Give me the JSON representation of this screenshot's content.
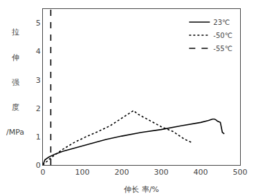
{
  "chart_data": {
    "type": "line",
    "xlabel": "伸长 率/%",
    "ylabel": [
      "拉",
      "伸",
      "强",
      "度",
      "/MPa"
    ],
    "xlim": [
      0,
      500
    ],
    "ylim": [
      0,
      5.5
    ],
    "xticks": [
      0,
      100,
      200,
      300,
      400,
      500
    ],
    "yticks": [
      0,
      1,
      2,
      3,
      4,
      5
    ],
    "grid": false,
    "legend": "upper right",
    "series": [
      {
        "name": "23℃",
        "color": "#000000",
        "line_style": "solid",
        "x": [
          0,
          5,
          15,
          30,
          50,
          80,
          120,
          160,
          200,
          250,
          300,
          350,
          400,
          420,
          430,
          435,
          438,
          440,
          442,
          445,
          450,
          455,
          460
        ],
        "values": [
          0.0,
          0.18,
          0.28,
          0.38,
          0.48,
          0.6,
          0.75,
          0.9,
          1.02,
          1.15,
          1.25,
          1.38,
          1.5,
          1.57,
          1.62,
          1.62,
          1.6,
          1.58,
          1.55,
          1.53,
          1.5,
          1.15,
          1.1
        ]
      },
      {
        "name": "-50℃",
        "color": "#000000",
        "line_style": "dotted",
        "x": [
          0,
          20,
          50,
          80,
          110,
          140,
          170,
          200,
          220,
          230,
          240,
          260,
          280,
          300,
          330,
          360,
          380
        ],
        "values": [
          0.0,
          0.25,
          0.55,
          0.8,
          1.0,
          1.18,
          1.38,
          1.65,
          1.82,
          1.92,
          1.8,
          1.65,
          1.48,
          1.35,
          1.18,
          0.9,
          0.78
        ]
      },
      {
        "name": "-55℃",
        "color": "#000000",
        "line_style": "dashed",
        "x": [
          20,
          20
        ],
        "values": [
          0.0,
          5.5
        ]
      }
    ]
  }
}
